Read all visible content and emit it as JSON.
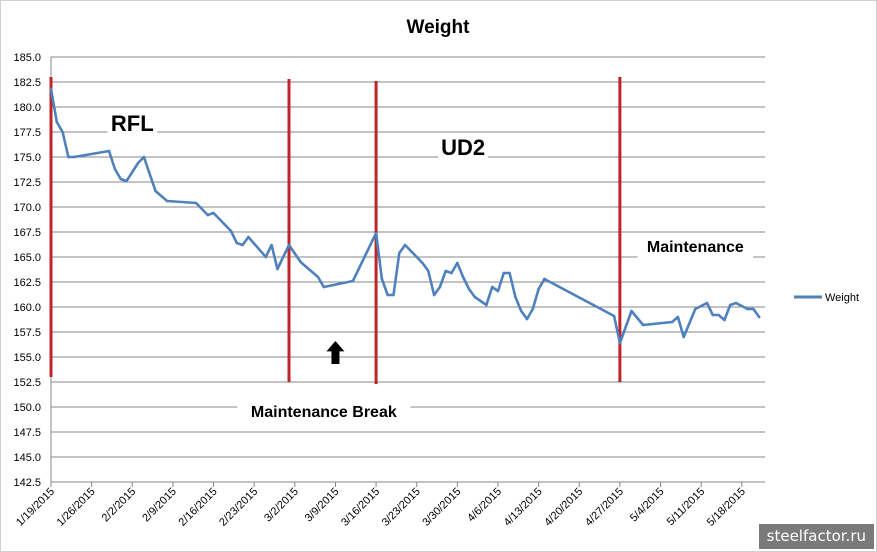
{
  "chart_data": {
    "type": "line",
    "title": "Weight",
    "xlabel": "",
    "ylabel": "",
    "ylim": [
      142.5,
      185.0
    ],
    "y_ticks": [
      "142.5",
      "145.0",
      "147.5",
      "150.0",
      "152.5",
      "155.0",
      "157.5",
      "160.0",
      "162.5",
      "165.0",
      "167.5",
      "170.0",
      "172.5",
      "175.0",
      "177.5",
      "180.0",
      "182.5",
      "185.0"
    ],
    "x_range": [
      "2015-01-19",
      "2015-05-22"
    ],
    "x_ticks": [
      {
        "date": "2015-01-19",
        "label": "1/19/2015"
      },
      {
        "date": "2015-01-26",
        "label": "1/26/2015"
      },
      {
        "date": "2015-02-02",
        "label": "2/2/2015"
      },
      {
        "date": "2015-02-09",
        "label": "2/9/2015"
      },
      {
        "date": "2015-02-16",
        "label": "2/16/2015"
      },
      {
        "date": "2015-02-23",
        "label": "2/23/2015"
      },
      {
        "date": "2015-03-02",
        "label": "3/2/2015"
      },
      {
        "date": "2015-03-09",
        "label": "3/9/2015"
      },
      {
        "date": "2015-03-16",
        "label": "3/16/2015"
      },
      {
        "date": "2015-03-23",
        "label": "3/23/2015"
      },
      {
        "date": "2015-03-30",
        "label": "3/30/2015"
      },
      {
        "date": "2015-04-06",
        "label": "4/6/2015"
      },
      {
        "date": "2015-04-13",
        "label": "4/13/2015"
      },
      {
        "date": "2015-04-20",
        "label": "4/20/2015"
      },
      {
        "date": "2015-04-27",
        "label": "4/27/2015"
      },
      {
        "date": "2015-05-04",
        "label": "5/4/2015"
      },
      {
        "date": "2015-05-11",
        "label": "5/11/2015"
      },
      {
        "date": "2015-05-18",
        "label": "5/18/2015"
      }
    ],
    "grid": true,
    "legend_position": "right",
    "series": [
      {
        "name": "Weight",
        "color": "#4f81bd",
        "points": [
          [
            "2015-01-19",
            181.8
          ],
          [
            "2015-01-20",
            178.5
          ],
          [
            "2015-01-21",
            177.5
          ],
          [
            "2015-01-22",
            175.0
          ],
          [
            "2015-01-23",
            175.0
          ],
          [
            "2015-01-29",
            175.6
          ],
          [
            "2015-01-30",
            173.8
          ],
          [
            "2015-01-31",
            172.8
          ],
          [
            "2015-02-01",
            172.6
          ],
          [
            "2015-02-03",
            174.4
          ],
          [
            "2015-02-04",
            175.0
          ],
          [
            "2015-02-06",
            171.6
          ],
          [
            "2015-02-08",
            170.6
          ],
          [
            "2015-02-13",
            170.4
          ],
          [
            "2015-02-15",
            169.2
          ],
          [
            "2015-02-16",
            169.4
          ],
          [
            "2015-02-19",
            167.6
          ],
          [
            "2015-02-20",
            166.4
          ],
          [
            "2015-02-21",
            166.2
          ],
          [
            "2015-02-22",
            167.0
          ],
          [
            "2015-02-25",
            165.0
          ],
          [
            "2015-02-26",
            166.2
          ],
          [
            "2015-02-27",
            163.8
          ],
          [
            "2015-03-01",
            166.2
          ],
          [
            "2015-03-03",
            164.5
          ],
          [
            "2015-03-06",
            163.0
          ],
          [
            "2015-03-07",
            162.0
          ],
          [
            "2015-03-12",
            162.6
          ],
          [
            "2015-03-16",
            167.4
          ],
          [
            "2015-03-17",
            162.8
          ],
          [
            "2015-03-18",
            161.2
          ],
          [
            "2015-03-19",
            161.2
          ],
          [
            "2015-03-20",
            165.4
          ],
          [
            "2015-03-21",
            166.2
          ],
          [
            "2015-03-24",
            164.4
          ],
          [
            "2015-03-25",
            163.6
          ],
          [
            "2015-03-26",
            161.2
          ],
          [
            "2015-03-27",
            162.0
          ],
          [
            "2015-03-28",
            163.6
          ],
          [
            "2015-03-29",
            163.4
          ],
          [
            "2015-03-30",
            164.4
          ],
          [
            "2015-03-31",
            163.0
          ],
          [
            "2015-04-01",
            161.8
          ],
          [
            "2015-04-02",
            161.0
          ],
          [
            "2015-04-04",
            160.2
          ],
          [
            "2015-04-05",
            162.0
          ],
          [
            "2015-04-06",
            161.6
          ],
          [
            "2015-04-07",
            163.4
          ],
          [
            "2015-04-08",
            163.4
          ],
          [
            "2015-04-09",
            161.0
          ],
          [
            "2015-04-10",
            159.6
          ],
          [
            "2015-04-11",
            158.8
          ],
          [
            "2015-04-12",
            159.8
          ],
          [
            "2015-04-13",
            161.8
          ],
          [
            "2015-04-14",
            162.8
          ],
          [
            "2015-04-26",
            159.1
          ],
          [
            "2015-04-27",
            156.4
          ],
          [
            "2015-04-29",
            159.6
          ],
          [
            "2015-05-01",
            158.2
          ],
          [
            "2015-05-06",
            158.5
          ],
          [
            "2015-05-07",
            159.0
          ],
          [
            "2015-05-08",
            157.0
          ],
          [
            "2015-05-10",
            159.8
          ],
          [
            "2015-05-12",
            160.4
          ],
          [
            "2015-05-13",
            159.2
          ],
          [
            "2015-05-14",
            159.2
          ],
          [
            "2015-05-15",
            158.7
          ],
          [
            "2015-05-16",
            160.2
          ],
          [
            "2015-05-17",
            160.4
          ],
          [
            "2015-05-19",
            159.8
          ],
          [
            "2015-05-20",
            159.8
          ],
          [
            "2015-05-21",
            159.0
          ]
        ]
      }
    ],
    "markers": [
      {
        "date": "2015-01-19",
        "from": 153.0,
        "to": 183.0,
        "color": "#c0242b"
      },
      {
        "date": "2015-03-01",
        "from": 152.5,
        "to": 182.8,
        "color": "#c0242b"
      },
      {
        "date": "2015-03-16",
        "from": 152.3,
        "to": 182.6,
        "color": "#c0242b"
      },
      {
        "date": "2015-04-27",
        "from": 152.5,
        "to": 183.0,
        "color": "#c0242b"
      }
    ],
    "arrow": {
      "date": "2015-03-09",
      "y_tip": 156.6,
      "y_base": 154.3
    },
    "annotations": [
      {
        "text": "RFL",
        "date": "2015-02-02",
        "y": 177.6,
        "size": "large"
      },
      {
        "text": "UD2",
        "date": "2015-03-31",
        "y": 175.2,
        "size": "large"
      },
      {
        "text": "Maintenance",
        "date": "2015-05-10",
        "y": 165.5,
        "size": "medium"
      },
      {
        "text": "Maintenance Break",
        "date": "2015-03-07",
        "y": 149.0,
        "size": "medium"
      }
    ]
  },
  "watermark": "steelfactor.ru"
}
